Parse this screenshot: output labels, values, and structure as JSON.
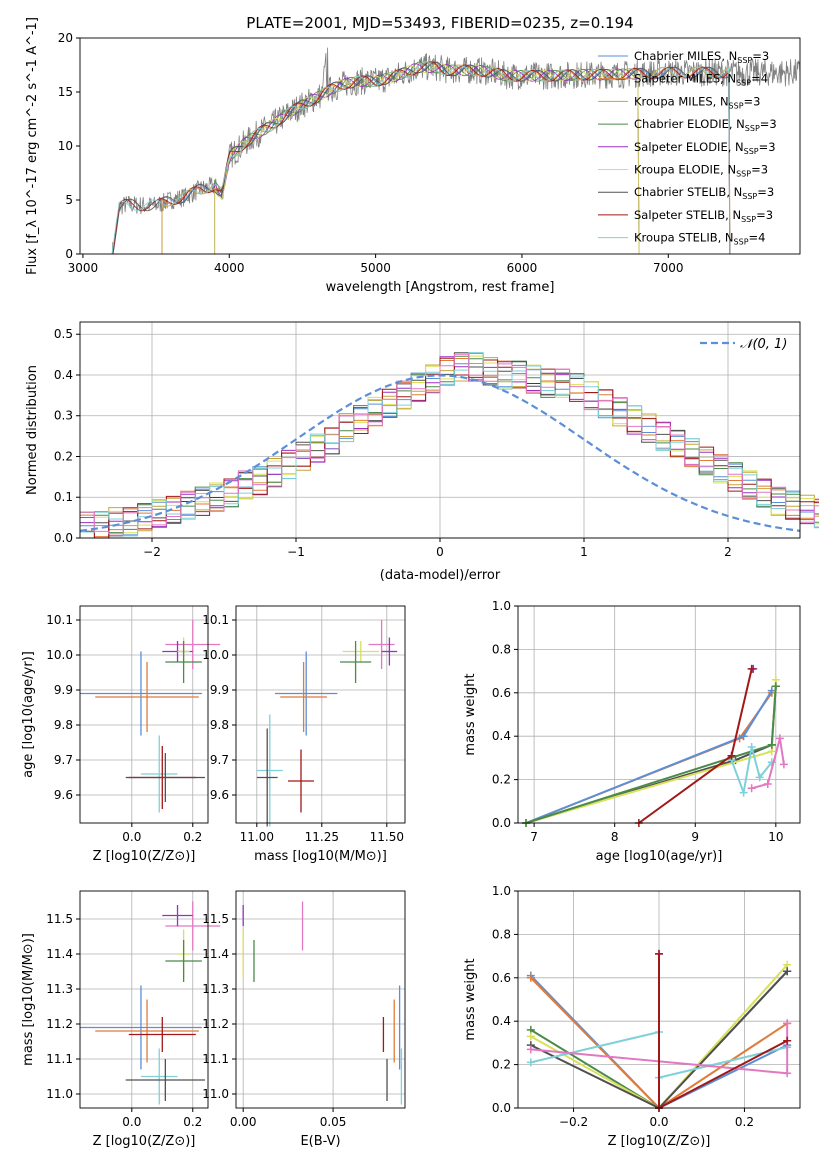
{
  "chart_data": [
    {
      "type": "line",
      "title": "PLATE=2001, MJD=53493, FIBERID=0235, z=0.194",
      "xlabel": "wavelength [Angstrom, rest frame]",
      "ylabel": "Flux [f_λ 10^-17 erg cm^-2 s^-1 A^-1]",
      "xlim": [
        2980,
        7900
      ],
      "ylim": [
        0,
        20
      ],
      "xticks": [
        "3000",
        "4000",
        "5000",
        "6000",
        "7000"
      ],
      "yticks": [
        "0",
        "5",
        "10",
        "15",
        "20"
      ],
      "legend_position": "top-right",
      "continuum_x": [
        3200,
        3250,
        3300,
        3400,
        3500,
        3600,
        3700,
        3800,
        3900,
        3950,
        4000,
        4100,
        4200,
        4300,
        4400,
        4500,
        4600,
        4700,
        4800,
        4900,
        5000,
        5100,
        5200,
        5300,
        5400,
        5500,
        5600,
        5700,
        5800,
        5900,
        6000,
        6200,
        6400,
        6600,
        6800,
        7000,
        7200,
        7400,
        7600,
        7800
      ],
      "continuum_y": [
        0,
        4.4,
        4.6,
        4.5,
        4.5,
        5.0,
        5.3,
        6.0,
        6.3,
        5.5,
        9.0,
        10.2,
        11.2,
        12.0,
        13.0,
        13.8,
        14.5,
        15.3,
        15.8,
        16.0,
        16.0,
        16.3,
        16.8,
        17.3,
        17.3,
        17.0,
        17.0,
        17.0,
        16.8,
        16.5,
        16.5,
        16.5,
        16.6,
        16.6,
        16.7,
        16.8,
        16.8,
        16.8,
        16.8,
        16.8
      ],
      "series": [
        {
          "name": "Chabrier MILES",
          "nssp": "3",
          "color": "#5b8fd6",
          "xmin": 3540,
          "xmax": 7420
        },
        {
          "name": "Salpeter MILES",
          "nssp": "4",
          "color": "#e07b39",
          "xmin": 3540,
          "xmax": 7420
        },
        {
          "name": "Kroupa MILES",
          "nssp": "3",
          "color": "#c9a33a",
          "xmin": 3540,
          "xmax": 7420
        },
        {
          "name": "Chabrier ELODIE",
          "nssp": "3",
          "color": "#4a8a4a",
          "xmin": 3900,
          "xmax": 6800
        },
        {
          "name": "Salpeter ELODIE",
          "nssp": "3",
          "color": "#9b30c0",
          "xmin": 3900,
          "xmax": 6800
        },
        {
          "name": "Kroupa ELODIE",
          "nssp": "3",
          "color": "#d9e05a",
          "xmin": 3900,
          "xmax": 6800
        },
        {
          "name": "Chabrier STELIB",
          "nssp": "3",
          "color": "#505050",
          "xmin": 3200,
          "xmax": 7420
        },
        {
          "name": "Salpeter STELIB",
          "nssp": "3",
          "color": "#a01818",
          "xmin": 3200,
          "xmax": 7420
        },
        {
          "name": "Kroupa STELIB",
          "nssp": "4",
          "color": "#7fd0d8",
          "xmin": 3200,
          "xmax": 7420
        }
      ]
    },
    {
      "type": "histogram",
      "xlabel": "(data-model)/error",
      "ylabel": "Normed distribution",
      "xlim": [
        -2.5,
        2.5
      ],
      "ylim": [
        0,
        0.53
      ],
      "xticks": [
        "−2",
        "−1",
        "0",
        "1",
        "2"
      ],
      "yticks": [
        "0.0",
        "0.1",
        "0.2",
        "0.3",
        "0.4",
        "0.5"
      ],
      "bin_width": 0.1,
      "bin_start": -2.5,
      "values": [
        0.03,
        0.03,
        0.04,
        0.04,
        0.05,
        0.06,
        0.07,
        0.08,
        0.09,
        0.1,
        0.11,
        0.13,
        0.14,
        0.16,
        0.18,
        0.2,
        0.22,
        0.24,
        0.27,
        0.29,
        0.31,
        0.33,
        0.35,
        0.37,
        0.39,
        0.41,
        0.42,
        0.42,
        0.41,
        0.4,
        0.4,
        0.39,
        0.38,
        0.38,
        0.37,
        0.35,
        0.33,
        0.31,
        0.29,
        0.27,
        0.25,
        0.23,
        0.21,
        0.19,
        0.17,
        0.15,
        0.13,
        0.11,
        0.09,
        0.08,
        0.07,
        0.06,
        0.05,
        0.05,
        0.04,
        0.04,
        0.03,
        0.03,
        0.02,
        0.02
      ],
      "gaussian_label": "𝒩(0, 1)",
      "gaussian_color": "#5b8fd6"
    },
    {
      "type": "scatter",
      "xlabel": "Z [log10(Z/Z⊙)]",
      "ylabel": "age [log10(age/yr)]",
      "xlim": [
        -0.17,
        0.25
      ],
      "ylim": [
        9.52,
        10.14
      ],
      "xticks": [
        "0.0",
        "0.2"
      ],
      "yticks": [
        "9.6",
        "9.7",
        "9.8",
        "9.9",
        "10.0",
        "10.1"
      ],
      "points": [
        {
          "x": 0.2,
          "y": 10.03,
          "xerr": 0.09,
          "yerr": 0.07,
          "color": "#e377c2"
        },
        {
          "x": 0.15,
          "y": 10.01,
          "xerr": 0.05,
          "yerr": 0.03,
          "color": "#9b30c0"
        },
        {
          "x": 0.17,
          "y": 10.01,
          "xerr": 0.02,
          "yerr": 0.04,
          "color": "#d9e05a"
        },
        {
          "x": 0.17,
          "y": 9.98,
          "xerr": 0.06,
          "yerr": 0.06,
          "color": "#4a8a4a"
        },
        {
          "x": 0.03,
          "y": 9.89,
          "xerr": 0.2,
          "yerr": 0.12,
          "color": "#5b8fd6"
        },
        {
          "x": 0.05,
          "y": 9.88,
          "xerr": 0.17,
          "yerr": 0.1,
          "color": "#e07b39"
        },
        {
          "x": 0.09,
          "y": 9.66,
          "xerr": 0.06,
          "yerr": 0.11,
          "color": "#7fd0d8"
        },
        {
          "x": 0.1,
          "y": 9.65,
          "xerr": 0.11,
          "yerr": 0.09,
          "color": "#a01818"
        },
        {
          "x": 0.11,
          "y": 9.65,
          "xerr": 0.13,
          "yerr": 0.07,
          "color": "#505050"
        }
      ]
    },
    {
      "type": "scatter",
      "xlabel": "mass [log10(M/M⊙)]",
      "ylabel": "",
      "xlim": [
        10.92,
        11.57
      ],
      "ylim": [
        9.52,
        10.14
      ],
      "xticks": [
        "11.00",
        "11.25",
        "11.50"
      ],
      "yticks": [
        "9.6",
        "9.7",
        "9.8",
        "9.9",
        "10.0",
        "10.1"
      ],
      "points": [
        {
          "x": 11.48,
          "y": 10.03,
          "xerr": 0.05,
          "yerr": 0.07,
          "color": "#e377c2"
        },
        {
          "x": 11.51,
          "y": 10.01,
          "xerr": 0.03,
          "yerr": 0.04,
          "color": "#9b30c0"
        },
        {
          "x": 11.4,
          "y": 10.01,
          "xerr": 0.07,
          "yerr": 0.03,
          "color": "#d9e05a"
        },
        {
          "x": 11.38,
          "y": 9.98,
          "xerr": 0.06,
          "yerr": 0.06,
          "color": "#4a8a4a"
        },
        {
          "x": 11.19,
          "y": 9.89,
          "xerr": 0.12,
          "yerr": 0.12,
          "color": "#5b8fd6"
        },
        {
          "x": 11.18,
          "y": 9.88,
          "xerr": 0.09,
          "yerr": 0.1,
          "color": "#e07b39"
        },
        {
          "x": 11.05,
          "y": 9.67,
          "xerr": 0.05,
          "yerr": 0.16,
          "color": "#7fd0d8"
        },
        {
          "x": 11.17,
          "y": 9.64,
          "xerr": 0.05,
          "yerr": 0.09,
          "color": "#a01818"
        },
        {
          "x": 11.04,
          "y": 9.65,
          "xerr": 0.04,
          "yerr": 0.14,
          "color": "#505050"
        }
      ]
    },
    {
      "type": "line",
      "xlabel": "age [log10(age/yr)]",
      "ylabel": "mass weight",
      "xlim": [
        6.8,
        10.3
      ],
      "ylim": [
        0,
        1
      ],
      "xticks": [
        "7",
        "8",
        "9",
        "10"
      ],
      "yticks": [
        "0.0",
        "0.2",
        "0.4",
        "0.6",
        "0.8",
        "1.0"
      ],
      "series": [
        {
          "color": "#505050",
          "x": [
            6.9,
            9.5,
            9.95,
            10.0
          ],
          "y": [
            0.0,
            0.29,
            0.36,
            0.63
          ]
        },
        {
          "color": "#e07b39",
          "x": [
            6.9,
            9.55,
            9.95
          ],
          "y": [
            0.0,
            0.39,
            0.6
          ]
        },
        {
          "color": "#5b8fd6",
          "x": [
            6.9,
            9.6,
            9.95
          ],
          "y": [
            0.0,
            0.4,
            0.61
          ]
        },
        {
          "color": "#d9e05a",
          "x": [
            6.9,
            9.95,
            10.0
          ],
          "y": [
            0.0,
            0.33,
            0.66
          ]
        },
        {
          "color": "#4a8a4a",
          "x": [
            6.9,
            9.95,
            10.0
          ],
          "y": [
            0.0,
            0.36,
            0.63
          ]
        },
        {
          "color": "#7fd0d8",
          "x": [
            9.45,
            9.6,
            9.7,
            9.8,
            9.95
          ],
          "y": [
            0.29,
            0.14,
            0.35,
            0.21,
            0.28
          ]
        },
        {
          "color": "#e377c2",
          "x": [
            9.7,
            9.9,
            10.05,
            10.1
          ],
          "y": [
            0.16,
            0.18,
            0.39,
            0.27
          ]
        },
        {
          "color": "#9b30c0",
          "x": [
            9.72
          ],
          "y": [
            0.71
          ]
        },
        {
          "color": "#a01818",
          "x": [
            8.3,
            9.45,
            9.7
          ],
          "y": [
            0.0,
            0.31,
            0.71
          ]
        }
      ]
    },
    {
      "type": "scatter",
      "xlabel": "Z [log10(Z/Z⊙)]",
      "ylabel": "mass [log10(M/M⊙)]",
      "xlim": [
        -0.17,
        0.25
      ],
      "ylim": [
        10.96,
        11.58
      ],
      "xticks": [
        "0.0",
        "0.2"
      ],
      "yticks": [
        "11.0",
        "11.1",
        "11.2",
        "11.3",
        "11.4",
        "11.5"
      ],
      "points": [
        {
          "x": 0.2,
          "y": 11.48,
          "xerr": 0.09,
          "yerr": 0.07,
          "color": "#e377c2"
        },
        {
          "x": 0.15,
          "y": 11.51,
          "xerr": 0.05,
          "yerr": 0.03,
          "color": "#9b30c0"
        },
        {
          "x": 0.17,
          "y": 11.4,
          "xerr": 0.02,
          "yerr": 0.07,
          "color": "#d9e05a"
        },
        {
          "x": 0.17,
          "y": 11.38,
          "xerr": 0.06,
          "yerr": 0.06,
          "color": "#4a8a4a"
        },
        {
          "x": 0.03,
          "y": 11.19,
          "xerr": 0.2,
          "yerr": 0.12,
          "color": "#5b8fd6"
        },
        {
          "x": 0.05,
          "y": 11.18,
          "xerr": 0.17,
          "yerr": 0.09,
          "color": "#e07b39"
        },
        {
          "x": 0.09,
          "y": 11.05,
          "xerr": 0.06,
          "yerr": 0.08,
          "color": "#7fd0d8"
        },
        {
          "x": 0.1,
          "y": 11.17,
          "xerr": 0.11,
          "yerr": 0.05,
          "color": "#a01818"
        },
        {
          "x": 0.11,
          "y": 11.04,
          "xerr": 0.13,
          "yerr": 0.06,
          "color": "#505050"
        }
      ]
    },
    {
      "type": "scatter",
      "xlabel": "E(B-V)",
      "ylabel": "",
      "xlim": [
        -0.004,
        0.09
      ],
      "ylim": [
        10.96,
        11.58
      ],
      "xticks": [
        "0.00",
        "0.05"
      ],
      "yticks": [
        "11.0",
        "11.1",
        "11.2",
        "11.3",
        "11.4",
        "11.5"
      ],
      "points": [
        {
          "x": 0.033,
          "y": 11.48,
          "yerr": 0.07,
          "color": "#e377c2"
        },
        {
          "x": 0.0,
          "y": 11.51,
          "yerr": 0.03,
          "color": "#9b30c0"
        },
        {
          "x": 0.0,
          "y": 11.4,
          "yerr": 0.07,
          "color": "#d9e05a"
        },
        {
          "x": 0.006,
          "y": 11.38,
          "yerr": 0.06,
          "color": "#4a8a4a"
        },
        {
          "x": 0.087,
          "y": 11.19,
          "yerr": 0.12,
          "color": "#5b8fd6"
        },
        {
          "x": 0.084,
          "y": 11.18,
          "yerr": 0.09,
          "color": "#e07b39"
        },
        {
          "x": 0.088,
          "y": 11.05,
          "yerr": 0.08,
          "color": "#7fd0d8"
        },
        {
          "x": 0.078,
          "y": 11.17,
          "yerr": 0.05,
          "color": "#a01818"
        },
        {
          "x": 0.08,
          "y": 11.04,
          "yerr": 0.06,
          "color": "#505050"
        }
      ]
    },
    {
      "type": "line",
      "xlabel": "Z [log10(Z/Z⊙)]",
      "ylabel": "mass weight",
      "xlim": [
        -0.33,
        0.33
      ],
      "ylim": [
        0,
        1
      ],
      "xticks": [
        "−0.2",
        "0.0",
        "0.2"
      ],
      "yticks": [
        "0.0",
        "0.2",
        "0.4",
        "0.6",
        "0.8",
        "1.0"
      ],
      "series": [
        {
          "color": "#5b8fd6",
          "x": [
            -0.3,
            0.0,
            0.3
          ],
          "y": [
            0.61,
            0.0,
            0.29
          ]
        },
        {
          "color": "#e07b39",
          "x": [
            -0.3,
            0.0,
            0.3
          ],
          "y": [
            0.6,
            0.0,
            0.39
          ]
        },
        {
          "color": "#4a8a4a",
          "x": [
            -0.3,
            0.0,
            0.3
          ],
          "y": [
            0.36,
            0.0,
            0.63
          ]
        },
        {
          "color": "#d9e05a",
          "x": [
            -0.3,
            0.0,
            0.3
          ],
          "y": [
            0.33,
            0.0,
            0.66
          ]
        },
        {
          "color": "#505050",
          "x": [
            -0.3,
            0.0,
            0.3
          ],
          "y": [
            0.29,
            0.0,
            0.63
          ]
        },
        {
          "color": "#7fd0d8",
          "x": [
            -0.3,
            0.0,
            0.0,
            0.3
          ],
          "y": [
            0.21,
            0.35,
            0.14,
            0.28
          ]
        },
        {
          "color": "#e377c2",
          "x": [
            -0.3,
            0.3,
            0.3
          ],
          "y": [
            0.27,
            0.16,
            0.39
          ]
        },
        {
          "color": "#9b30c0",
          "x": [
            0.0
          ],
          "y": [
            0.71
          ]
        },
        {
          "color": "#a01818",
          "x": [
            0.0,
            0.0,
            0.3
          ],
          "y": [
            0.71,
            0.0,
            0.31
          ]
        }
      ]
    }
  ]
}
